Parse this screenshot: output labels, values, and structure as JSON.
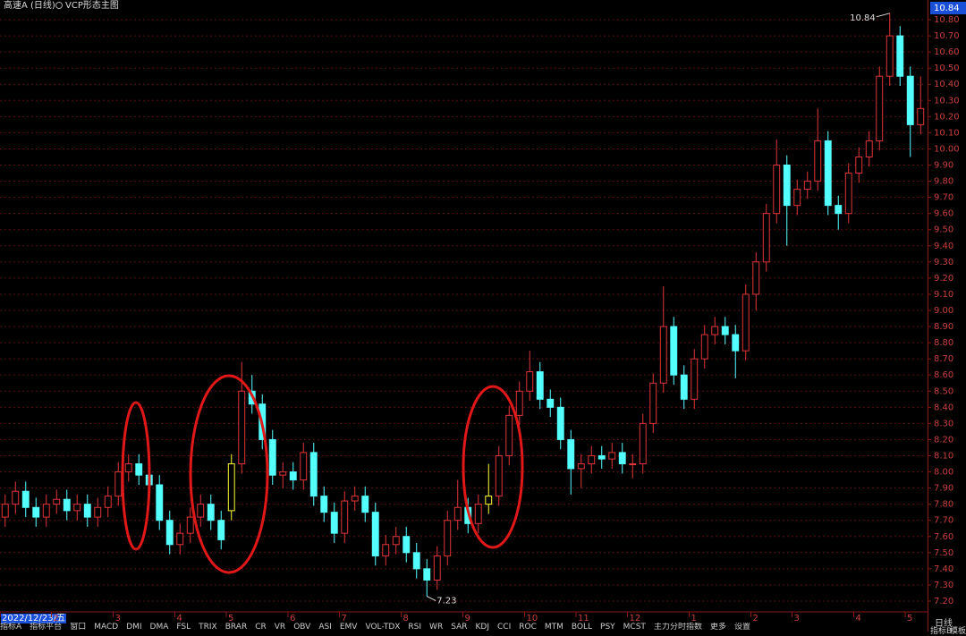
{
  "header": {
    "title": "高速A (日线)",
    "indicator": "VCP形态主图"
  },
  "toolbar": [
    "指标A",
    "指标平台",
    "窗口",
    "MACD",
    "DMI",
    "DMA",
    "FSL",
    "TRIX",
    "BRAR",
    "CR",
    "VR",
    "OBV",
    "ASI",
    "EMV",
    "VOL-TDX",
    "RSI",
    "WR",
    "SAR",
    "KDJ",
    "CCI",
    "ROC",
    "MTM",
    "BOLL",
    "PSY",
    "MCST",
    "主力分时指数",
    "更多",
    "设置"
  ],
  "period": "日线",
  "right_tabs": [
    "指标B",
    "模板"
  ],
  "chart_data": {
    "type": "candlestick",
    "up_color": "#e0353a",
    "down_color": "#54ffff",
    "highlight_color": "#ffff33",
    "highlight_candles": [
      22,
      47
    ],
    "grid": true,
    "ylim": [
      7.15,
      10.85
    ],
    "yticks": [
      {
        "value": 7.2,
        "label": "7.20"
      },
      {
        "value": 7.3,
        "label": "7.30"
      },
      {
        "value": 7.4,
        "label": "7.40"
      },
      {
        "value": 7.5,
        "label": "7.50"
      },
      {
        "value": 7.6,
        "label": "7.60"
      },
      {
        "value": 7.7,
        "label": "7.70"
      },
      {
        "value": 7.8,
        "label": "7.80"
      },
      {
        "value": 7.9,
        "label": "7.90"
      },
      {
        "value": 8.0,
        "label": "8.00"
      },
      {
        "value": 8.1,
        "label": "8.10"
      },
      {
        "value": 8.2,
        "label": "8.20"
      },
      {
        "value": 8.3,
        "label": "8.30"
      },
      {
        "value": 8.4,
        "label": "8.40"
      },
      {
        "value": 8.5,
        "label": "8.50"
      },
      {
        "value": 8.6,
        "label": "8.60"
      },
      {
        "value": 8.7,
        "label": "8.70"
      },
      {
        "value": 8.8,
        "label": "8.80"
      },
      {
        "value": 8.9,
        "label": "8.90"
      },
      {
        "value": 9.0,
        "label": "9.00"
      },
      {
        "value": 9.1,
        "label": "9.10"
      },
      {
        "value": 9.2,
        "label": "9.20"
      },
      {
        "value": 9.3,
        "label": "9.30"
      },
      {
        "value": 9.4,
        "label": "9.40"
      },
      {
        "value": 9.5,
        "label": "9.50"
      },
      {
        "value": 9.6,
        "label": "9.60"
      },
      {
        "value": 9.7,
        "label": "9.70"
      },
      {
        "value": 9.8,
        "label": "9.80"
      },
      {
        "value": 9.9,
        "label": "9.90"
      },
      {
        "value": 10.0,
        "label": "10.00"
      },
      {
        "value": 10.1,
        "label": "10.10"
      },
      {
        "value": 10.2,
        "label": "10.20"
      },
      {
        "value": 10.3,
        "label": "10.30"
      },
      {
        "value": 10.4,
        "label": "10.40"
      },
      {
        "value": 10.5,
        "label": "10.50"
      },
      {
        "value": 10.6,
        "label": "10.60"
      },
      {
        "value": 10.7,
        "label": "10.70"
      },
      {
        "value": 10.8,
        "label": "10.80"
      }
    ],
    "categories": [
      "2022/12/23/五",
      null,
      null,
      null,
      null,
      "2",
      null,
      null,
      null,
      null,
      null,
      "3",
      null,
      null,
      null,
      null,
      null,
      "4",
      null,
      null,
      null,
      null,
      "5",
      null,
      null,
      null,
      null,
      null,
      "6",
      null,
      null,
      null,
      null,
      "7",
      null,
      null,
      null,
      null,
      null,
      "8",
      null,
      null,
      null,
      null,
      null,
      "9",
      null,
      null,
      null,
      null,
      null,
      "10",
      null,
      null,
      null,
      null,
      "11",
      null,
      null,
      null,
      null,
      "12",
      null,
      null,
      null,
      null,
      null,
      "1",
      null,
      null,
      null,
      null,
      null,
      "2",
      null,
      null,
      null,
      "3",
      null,
      null,
      null,
      null,
      null,
      "4",
      null,
      null,
      null,
      null,
      "5",
      null
    ],
    "open": [
      7.72,
      7.8,
      7.88,
      7.78,
      7.72,
      7.8,
      7.83,
      7.76,
      7.8,
      7.72,
      7.78,
      7.85,
      8.0,
      8.05,
      7.98,
      7.92,
      7.7,
      7.55,
      7.62,
      7.72,
      7.8,
      7.7,
      7.76,
      8.05,
      8.5,
      8.42,
      8.2,
      7.98,
      8.0,
      7.95,
      8.12,
      7.85,
      7.75,
      7.62,
      7.82,
      7.85,
      7.75,
      7.48,
      7.55,
      7.6,
      7.5,
      7.4,
      7.33,
      7.48,
      7.7,
      7.78,
      7.68,
      7.8,
      7.85,
      8.1,
      8.35,
      8.5,
      8.62,
      8.45,
      8.4,
      8.2,
      8.02,
      8.05,
      8.1,
      8.08,
      8.12,
      8.05,
      8.05,
      8.3,
      8.55,
      8.9,
      8.6,
      8.45,
      8.7,
      8.85,
      8.9,
      8.85,
      8.75,
      9.1,
      9.3,
      9.6,
      9.9,
      9.65,
      9.75,
      9.8,
      10.05,
      9.65,
      9.6,
      9.85,
      9.95,
      10.05,
      10.45,
      10.7,
      10.45,
      10.15
    ],
    "high": [
      7.86,
      7.94,
      7.94,
      7.84,
      7.86,
      7.89,
      7.89,
      7.86,
      7.86,
      7.84,
      7.91,
      8.06,
      8.11,
      8.11,
      8.04,
      7.98,
      7.76,
      7.68,
      7.78,
      7.86,
      7.86,
      7.76,
      8.11,
      8.68,
      8.6,
      8.48,
      8.26,
      8.06,
      8.06,
      8.18,
      8.18,
      7.91,
      7.81,
      7.88,
      7.91,
      7.91,
      7.81,
      7.61,
      7.66,
      7.66,
      7.56,
      7.46,
      7.54,
      7.76,
      7.95,
      7.84,
      7.86,
      8.05,
      8.16,
      8.41,
      8.56,
      8.75,
      8.68,
      8.51,
      8.46,
      8.26,
      8.11,
      8.16,
      8.16,
      8.18,
      8.18,
      8.11,
      8.36,
      8.61,
      9.15,
      8.96,
      8.66,
      8.76,
      8.91,
      8.96,
      8.96,
      8.91,
      9.16,
      9.36,
      9.66,
      10.06,
      9.96,
      9.81,
      9.86,
      10.25,
      10.11,
      9.71,
      9.91,
      10.01,
      10.11,
      10.51,
      10.84,
      10.76,
      10.51,
      10.45
    ],
    "low": [
      7.66,
      7.74,
      7.72,
      7.66,
      7.66,
      7.74,
      7.7,
      7.7,
      7.66,
      7.66,
      7.72,
      7.79,
      7.94,
      7.92,
      7.86,
      7.64,
      7.49,
      7.49,
      7.56,
      7.66,
      7.64,
      7.52,
      7.7,
      7.99,
      8.36,
      8.14,
      7.92,
      7.9,
      7.89,
      7.89,
      7.79,
      7.69,
      7.56,
      7.56,
      7.76,
      7.69,
      7.42,
      7.42,
      7.49,
      7.44,
      7.34,
      7.23,
      7.27,
      7.42,
      7.64,
      7.62,
      7.62,
      7.74,
      7.79,
      8.04,
      8.29,
      8.44,
      8.39,
      8.34,
      8.14,
      7.86,
      7.9,
      7.99,
      8.02,
      8.02,
      7.99,
      7.96,
      7.99,
      8.24,
      8.49,
      8.54,
      8.39,
      8.39,
      8.64,
      8.79,
      8.79,
      8.58,
      8.69,
      9.0,
      9.24,
      9.54,
      9.4,
      9.59,
      9.69,
      9.74,
      9.59,
      9.5,
      9.54,
      9.79,
      9.89,
      9.99,
      10.39,
      10.39,
      9.95,
      10.09
    ],
    "close": [
      7.8,
      7.88,
      7.78,
      7.72,
      7.8,
      7.83,
      7.76,
      7.8,
      7.72,
      7.78,
      7.85,
      8.0,
      8.05,
      7.98,
      7.92,
      7.7,
      7.55,
      7.62,
      7.72,
      7.8,
      7.7,
      7.58,
      8.05,
      8.5,
      8.42,
      8.2,
      7.98,
      8.0,
      7.95,
      8.12,
      7.85,
      7.75,
      7.62,
      7.82,
      7.85,
      7.75,
      7.48,
      7.55,
      7.6,
      7.5,
      7.4,
      7.33,
      7.48,
      7.7,
      7.78,
      7.68,
      7.8,
      7.85,
      8.1,
      8.35,
      8.5,
      8.62,
      8.45,
      8.4,
      8.2,
      8.02,
      8.05,
      8.1,
      8.08,
      8.12,
      8.05,
      8.05,
      8.3,
      8.55,
      8.9,
      8.6,
      8.45,
      8.7,
      8.85,
      8.9,
      8.85,
      8.75,
      9.1,
      9.3,
      9.6,
      9.9,
      9.65,
      9.75,
      9.8,
      10.05,
      9.65,
      9.6,
      9.85,
      9.95,
      10.05,
      10.45,
      10.7,
      10.45,
      10.15,
      10.25
    ]
  }
}
